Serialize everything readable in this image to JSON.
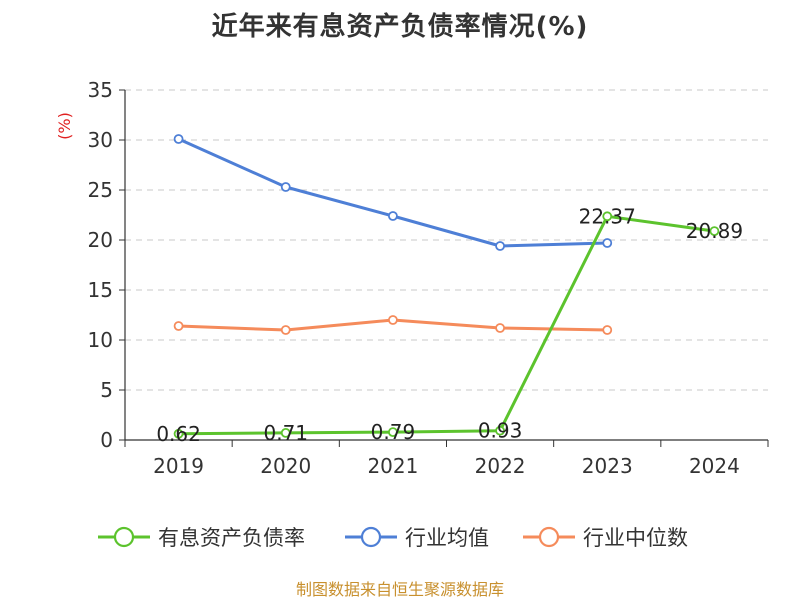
{
  "chart_data": {
    "type": "line",
    "title": "近年来有息资产负债率情况(%)",
    "ylabel": "(%)",
    "xlabel": "",
    "categories": [
      "2019",
      "2020",
      "2021",
      "2022",
      "2023",
      "2024"
    ],
    "ylim": [
      0,
      35
    ],
    "yticks": [
      0,
      5,
      10,
      15,
      20,
      25,
      30,
      35
    ],
    "grid": true,
    "legend_position": "bottom",
    "series": [
      {
        "name": "有息资产负债率",
        "color": "#5cc32d",
        "values": [
          0.62,
          0.71,
          0.79,
          0.93,
          22.37,
          20.89
        ],
        "labels": [
          "0.62",
          "0.71",
          "0.79",
          "0.93",
          "22.37",
          "20.89"
        ]
      },
      {
        "name": "行业均值",
        "color": "#4e7fd6",
        "values": [
          30.1,
          25.3,
          22.4,
          19.4,
          19.7,
          null
        ]
      },
      {
        "name": "行业中位数",
        "color": "#f58b5b",
        "values": [
          11.4,
          11.0,
          12.0,
          11.2,
          11.0,
          null
        ]
      }
    ]
  },
  "source_note": "制图数据来自恒生聚源数据库"
}
